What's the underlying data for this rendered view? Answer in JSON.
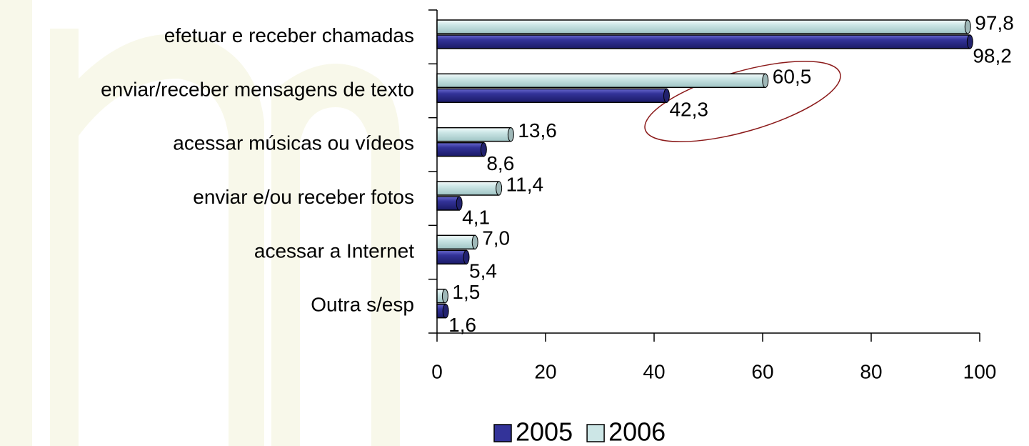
{
  "chart_data": {
    "type": "bar",
    "orientation": "horizontal",
    "categories": [
      "efetuar e receber chamadas",
      "enviar/receber mensagens de texto",
      "acessar músicas ou vídeos",
      "enviar e/ou receber fotos",
      "acessar a Internet",
      "Outra s/esp"
    ],
    "series": [
      {
        "name": "2005",
        "color": "#333399",
        "values": [
          98.2,
          42.3,
          8.6,
          4.1,
          5.4,
          1.6
        ],
        "value_labels": [
          "98,2",
          "42,3",
          "8,6",
          "4,1",
          "5,4",
          "1,6"
        ]
      },
      {
        "name": "2006",
        "color": "#cce6e6",
        "values": [
          97.8,
          60.5,
          13.6,
          11.4,
          7.0,
          1.5
        ],
        "value_labels": [
          "97,8",
          "60,5",
          "13,6",
          "11,4",
          "7,0",
          "1,5"
        ]
      }
    ],
    "xlim": [
      0,
      100
    ],
    "xticks": [
      0,
      20,
      40,
      60,
      80,
      100
    ],
    "legend": "bottom"
  }
}
